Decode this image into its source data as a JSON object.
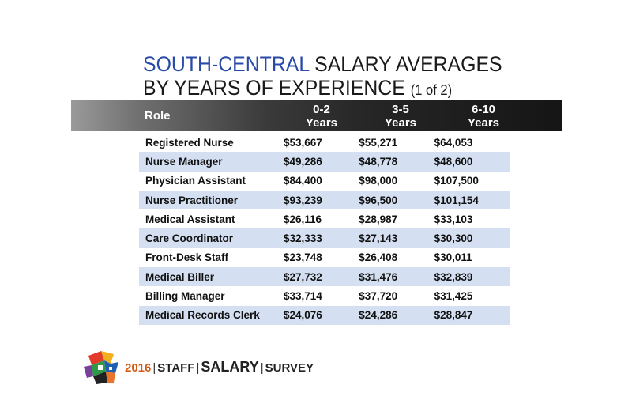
{
  "title": {
    "accent": "SOUTH-CENTRAL",
    "line1_rest": " SALARY AVERAGES",
    "line2": "BY YEARS OF EXPERIENCE",
    "part": "(1 of 2)"
  },
  "table": {
    "headers": {
      "role": "Role",
      "c1_top": "0-2",
      "c1_bottom": "Years",
      "c2_top": "3-5",
      "c2_bottom": "Years",
      "c3_top": "6-10",
      "c3_bottom": "Years"
    },
    "rows": [
      {
        "role": "Registered Nurse",
        "y0_2": "$53,667",
        "y3_5": "$55,271",
        "y6_10": "$64,053"
      },
      {
        "role": "Nurse Manager",
        "y0_2": "$49,286",
        "y3_5": "$48,778",
        "y6_10": "$48,600"
      },
      {
        "role": "Physician Assistant",
        "y0_2": "$84,400",
        "y3_5": "$98,000",
        "y6_10": "$107,500"
      },
      {
        "role": "Nurse Practitioner",
        "y0_2": "$93,239",
        "y3_5": "$96,500",
        "y6_10": "$101,154"
      },
      {
        "role": "Medical Assistant",
        "y0_2": "$26,116",
        "y3_5": "$28,987",
        "y6_10": "$33,103"
      },
      {
        "role": "Care Coordinator",
        "y0_2": "$32,333",
        "y3_5": "$27,143",
        "y6_10": "$30,300"
      },
      {
        "role": "Front-Desk Staff",
        "y0_2": "$23,748",
        "y3_5": "$26,408",
        "y6_10": "$30,011"
      },
      {
        "role": "Medical Biller",
        "y0_2": "$27,732",
        "y3_5": "$31,476",
        "y6_10": "$32,839"
      },
      {
        "role": "Billing Manager",
        "y0_2": "$33,714",
        "y3_5": "$37,720",
        "y6_10": "$31,425"
      },
      {
        "role": "Medical Records Clerk",
        "y0_2": "$24,076",
        "y3_5": "$24,286",
        "y6_10": "$28,847"
      }
    ]
  },
  "footer": {
    "year": "2016",
    "w1": "STAFF",
    "w2": "SALARY",
    "w3": "SURVEY",
    "separator": "|",
    "logo_icon": "survey-cube-logo"
  },
  "colors": {
    "accent_blue": "#2a4aa8",
    "row_shade": "#d4e0f2",
    "year_orange": "#d45a14"
  }
}
